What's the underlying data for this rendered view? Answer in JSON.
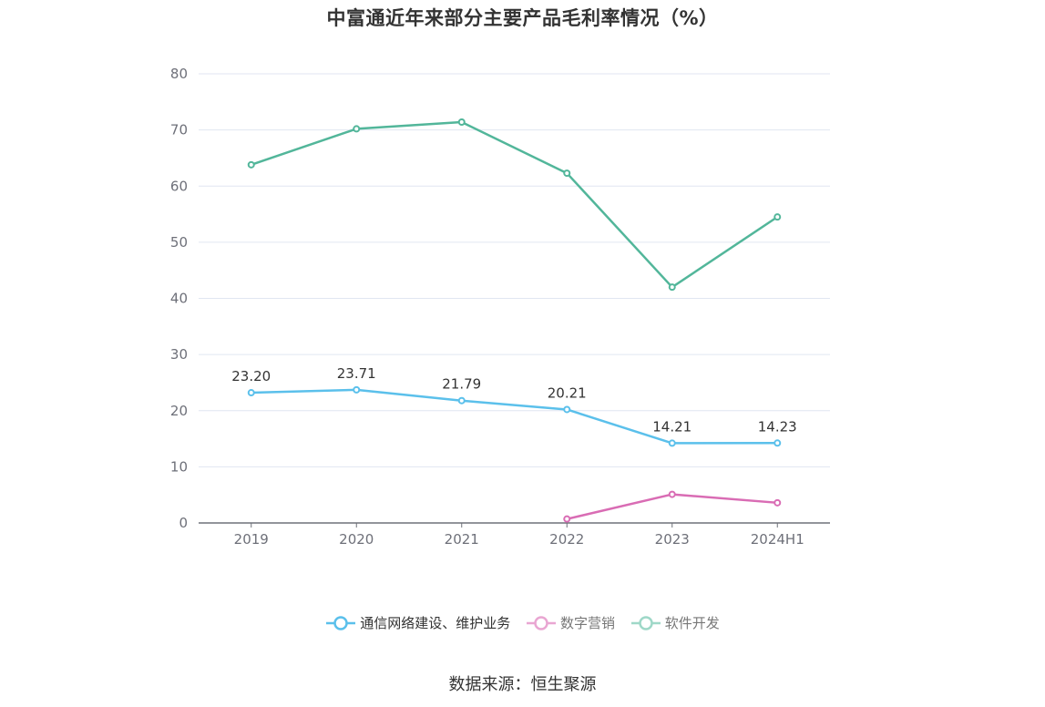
{
  "chart_data": {
    "type": "line",
    "title": "中富通近年来部分主要产品毛利率情况（%）",
    "categories": [
      "2019",
      "2020",
      "2021",
      "2022",
      "2023",
      "2024H1"
    ],
    "ylim": [
      0,
      80
    ],
    "yticks": [
      0,
      10,
      20,
      30,
      40,
      50,
      60,
      70,
      80
    ],
    "grid": true,
    "legend_position": "bottom-center",
    "series": [
      {
        "name": "通信网络建设、维护业务",
        "color": "#5bc0eb",
        "values": [
          23.2,
          23.71,
          21.79,
          20.21,
          14.21,
          14.23
        ],
        "labels": [
          "23.20",
          "23.71",
          "21.79",
          "20.21",
          "14.21",
          "14.23"
        ],
        "show_labels": true
      },
      {
        "name": "数字营销",
        "color": "#d96cb4",
        "values": [
          null,
          null,
          null,
          0.7,
          5.1,
          3.6
        ],
        "show_labels": false
      },
      {
        "name": "软件开发",
        "color": "#52b69a",
        "values": [
          63.8,
          70.2,
          71.4,
          62.3,
          42.0,
          54.5
        ],
        "show_labels": false
      }
    ]
  },
  "source_text": "数据来源：恒生聚源"
}
